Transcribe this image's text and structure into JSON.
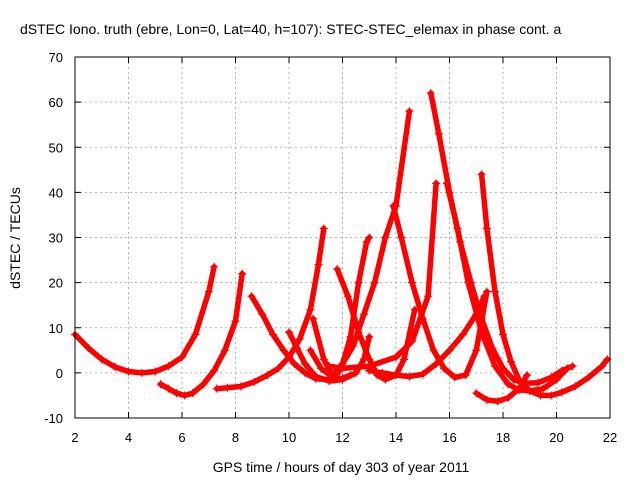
{
  "chart_data": {
    "type": "scatter",
    "title": "dSTEC Iono. truth (ebre, Lon=0, Lat=40, h=107): STEC-STEC_elemax in phase cont. a",
    "xlabel": "GPS time / hours of day 303 of year 2011",
    "ylabel": "dSTEC  / TECUs",
    "xlim": [
      2,
      22
    ],
    "ylim": [
      -10,
      70
    ],
    "xticks": [
      "2",
      "4",
      "6",
      "8",
      "10",
      "12",
      "14",
      "16",
      "18",
      "20",
      "22"
    ],
    "yticks": [
      "-10",
      "0",
      "10",
      "20",
      "30",
      "40",
      "50",
      "60",
      "70"
    ],
    "grid": true,
    "marker": "+",
    "series_color": "#ff0000",
    "series": [
      {
        "points": [
          [
            2.0,
            8.5
          ],
          [
            2.5,
            5.5
          ],
          [
            3.0,
            3.0
          ],
          [
            3.5,
            1.3
          ],
          [
            4.0,
            0.3
          ],
          [
            4.5,
            0.0
          ],
          [
            5.0,
            0.3
          ],
          [
            5.5,
            1.5
          ],
          [
            6.0,
            3.5
          ],
          [
            6.5,
            8.5
          ],
          [
            7.0,
            18.0
          ],
          [
            7.2,
            23.5
          ]
        ]
      },
      {
        "points": [
          [
            5.2,
            -2.5
          ],
          [
            5.5,
            -3.5
          ],
          [
            5.8,
            -4.5
          ],
          [
            6.1,
            -5.0
          ],
          [
            6.4,
            -4.5
          ],
          [
            6.8,
            -2.5
          ],
          [
            7.2,
            0.5
          ],
          [
            7.6,
            5.0
          ],
          [
            8.0,
            11.5
          ],
          [
            8.25,
            22.0
          ]
        ]
      },
      {
        "points": [
          [
            7.3,
            -3.5
          ],
          [
            7.7,
            -3.3
          ],
          [
            8.2,
            -3.0
          ],
          [
            8.7,
            -2.0
          ],
          [
            9.2,
            -0.5
          ],
          [
            9.6,
            1.0
          ],
          [
            10.0,
            3.5
          ],
          [
            10.4,
            7.5
          ],
          [
            10.8,
            14.0
          ],
          [
            11.1,
            24.0
          ],
          [
            11.3,
            32.0
          ]
        ]
      },
      {
        "points": [
          [
            8.6,
            17.0
          ],
          [
            9.0,
            13.0
          ],
          [
            9.4,
            8.5
          ],
          [
            9.8,
            5.0
          ],
          [
            10.2,
            2.0
          ],
          [
            10.6,
            0.0
          ],
          [
            11.0,
            -1.3
          ],
          [
            11.5,
            -1.5
          ],
          [
            12.0,
            -1.2
          ],
          [
            12.3,
            -0.5
          ]
        ]
      },
      {
        "points": [
          [
            10.0,
            9.0
          ],
          [
            10.3,
            5.5
          ],
          [
            10.6,
            2.0
          ],
          [
            11.0,
            -0.8
          ],
          [
            11.5,
            -1.8
          ],
          [
            12.0,
            -1.5
          ],
          [
            12.5,
            0.0
          ],
          [
            12.8,
            3.0
          ],
          [
            13.0,
            8.0
          ]
        ]
      },
      {
        "points": [
          [
            11.8,
            23.0
          ],
          [
            12.2,
            17.0
          ],
          [
            12.6,
            9.0
          ],
          [
            13.0,
            3.0
          ],
          [
            13.3,
            -0.5
          ],
          [
            13.6,
            -1.5
          ],
          [
            14.0,
            -0.5
          ],
          [
            14.3,
            3.0
          ],
          [
            14.7,
            14.0
          ]
        ]
      },
      {
        "points": [
          [
            10.9,
            12.0
          ],
          [
            11.3,
            3.0
          ],
          [
            11.7,
            -1.5
          ],
          [
            12.0,
            2.0
          ],
          [
            12.3,
            8.0
          ],
          [
            12.6,
            20.0
          ],
          [
            12.9,
            29.0
          ],
          [
            13.0,
            30.0
          ]
        ]
      },
      {
        "points": [
          [
            10.8,
            5.0
          ],
          [
            11.2,
            1.0
          ],
          [
            11.6,
            -0.8
          ],
          [
            12.0,
            2.0
          ],
          [
            12.4,
            6.0
          ],
          [
            12.8,
            13.0
          ],
          [
            13.2,
            20.0
          ],
          [
            13.6,
            30.0
          ],
          [
            14.0,
            37.0
          ],
          [
            14.5,
            58.0
          ]
        ]
      },
      {
        "points": [
          [
            13.9,
            37.0
          ],
          [
            14.2,
            30.0
          ],
          [
            14.6,
            20.0
          ],
          [
            15.0,
            12.0
          ],
          [
            15.4,
            5.0
          ],
          [
            15.8,
            1.0
          ],
          [
            16.2,
            -1.0
          ],
          [
            16.6,
            -0.5
          ],
          [
            17.0,
            5.0
          ],
          [
            17.4,
            18.0
          ]
        ]
      },
      {
        "points": [
          [
            11.5,
            1.5
          ],
          [
            12.0,
            1.0
          ],
          [
            13.0,
            1.5
          ],
          [
            14.0,
            3.5
          ],
          [
            14.6,
            7.0
          ],
          [
            15.2,
            17.0
          ],
          [
            15.5,
            42.0
          ]
        ]
      },
      {
        "points": [
          [
            13.0,
            0.5
          ],
          [
            13.5,
            0.0
          ],
          [
            14.0,
            -0.5
          ],
          [
            14.5,
            -0.8
          ],
          [
            15.0,
            -0.3
          ],
          [
            15.5,
            2.0
          ],
          [
            16.0,
            5.0
          ],
          [
            16.5,
            8.5
          ],
          [
            17.0,
            13.0
          ],
          [
            17.3,
            17.0
          ]
        ]
      },
      {
        "points": [
          [
            15.3,
            62.0
          ],
          [
            15.6,
            53.0
          ],
          [
            16.0,
            40.0
          ],
          [
            16.4,
            29.0
          ],
          [
            16.8,
            20.0
          ],
          [
            17.2,
            12.0
          ],
          [
            17.6,
            5.5
          ],
          [
            18.0,
            1.0
          ],
          [
            18.4,
            -1.5
          ],
          [
            18.8,
            -2.3
          ],
          [
            19.3,
            -2.2
          ],
          [
            19.8,
            -1.0
          ],
          [
            20.2,
            0.5
          ],
          [
            20.6,
            1.5
          ]
        ]
      },
      {
        "points": [
          [
            15.9,
            42.0
          ],
          [
            16.3,
            32.0
          ],
          [
            16.7,
            20.0
          ],
          [
            17.2,
            9.0
          ],
          [
            17.7,
            1.5
          ],
          [
            18.2,
            -2.5
          ],
          [
            18.6,
            -3.8
          ],
          [
            19.0,
            -4.0
          ],
          [
            19.5,
            -3.5
          ],
          [
            20.0,
            -1.5
          ],
          [
            20.4,
            1.0
          ]
        ]
      },
      {
        "points": [
          [
            17.2,
            44.0
          ],
          [
            17.4,
            32.0
          ],
          [
            17.7,
            18.0
          ],
          [
            18.0,
            8.5
          ],
          [
            18.3,
            2.5
          ],
          [
            18.6,
            -1.5
          ],
          [
            19.0,
            -4.0
          ],
          [
            19.4,
            -5.0
          ],
          [
            19.8,
            -5.0
          ],
          [
            20.2,
            -4.3
          ],
          [
            20.7,
            -3.0
          ],
          [
            21.2,
            -1.0
          ],
          [
            21.7,
            1.5
          ],
          [
            21.9,
            3.0
          ]
        ]
      },
      {
        "points": [
          [
            17.0,
            -4.5
          ],
          [
            17.4,
            -6.0
          ],
          [
            17.8,
            -6.3
          ],
          [
            18.2,
            -5.5
          ],
          [
            18.6,
            -3.5
          ],
          [
            18.9,
            -0.5
          ]
        ]
      }
    ]
  }
}
